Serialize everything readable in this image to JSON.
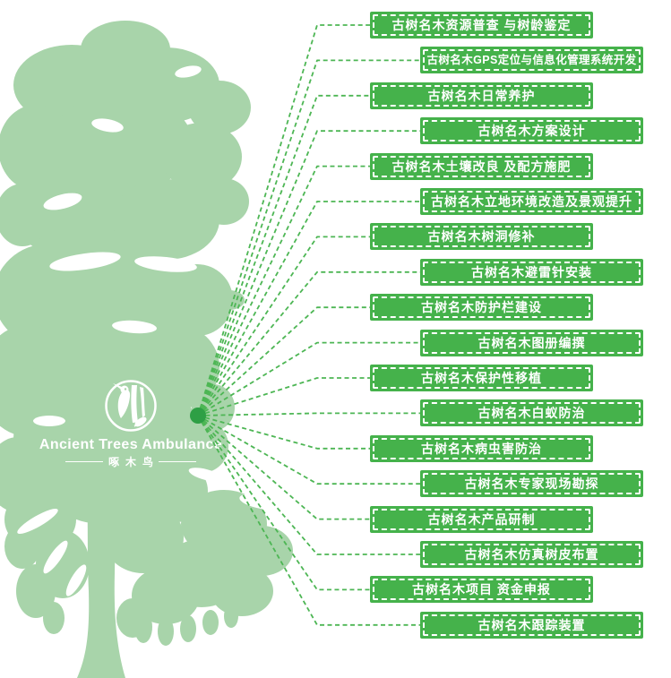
{
  "logo": {
    "title": "Ancient Trees Ambulance",
    "subtitle": "啄木鸟",
    "emblem_icon": "woodpecker-in-circle-icon"
  },
  "colors": {
    "tree_silhouette": "#a8d4aa",
    "banner_green": "#45b24b",
    "line_green": "#4db654",
    "hub_dot_green": "#2e9f45",
    "text_white": "#ffffff"
  },
  "services": {
    "items": [
      {
        "label": "古树名木资源普查 与树龄鉴定"
      },
      {
        "label": "古树名木GPS定位与信息化管理系统开发"
      },
      {
        "label": "古树名木日常养护"
      },
      {
        "label": "古树名木方案设计"
      },
      {
        "label": "古树名木土壤改良 及配方施肥"
      },
      {
        "label": "古树名木立地环境改造及景观提升"
      },
      {
        "label": "古树名木树洞修补"
      },
      {
        "label": "古树名木避雷针安装"
      },
      {
        "label": "古树名木防护栏建设"
      },
      {
        "label": "古树名木图册编撰"
      },
      {
        "label": "古树名木保护性移植"
      },
      {
        "label": "古树名木白蚁防治"
      },
      {
        "label": "古树名木病虫害防治"
      },
      {
        "label": "古树名木专家现场勘探"
      },
      {
        "label": "古树名木产品研制"
      },
      {
        "label": "古树名木仿真树皮布置"
      },
      {
        "label": "古树名木项目 资金申报"
      },
      {
        "label": "古树名木跟踪装置"
      }
    ]
  }
}
